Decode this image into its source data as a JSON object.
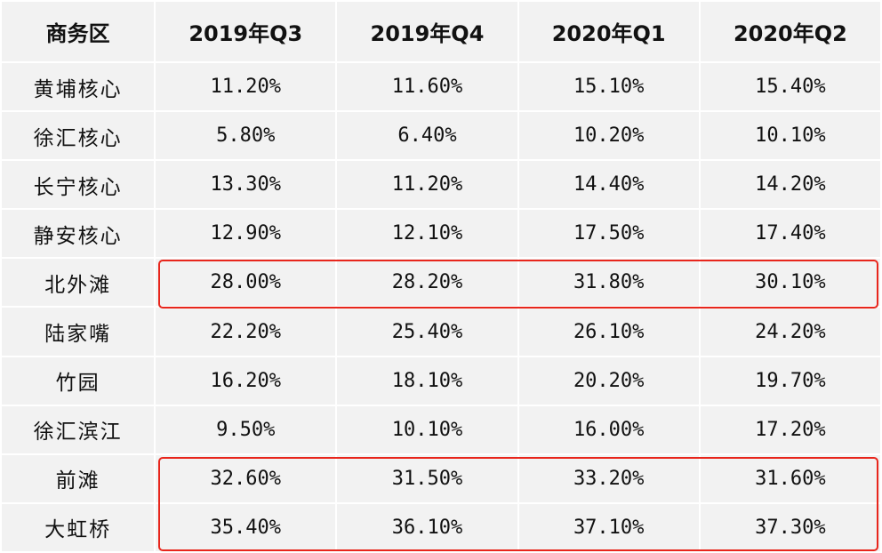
{
  "chart_data": {
    "type": "table",
    "columns": [
      "商务区",
      "2019年Q3",
      "2019年Q4",
      "2020年Q1",
      "2020年Q2"
    ],
    "rows": [
      [
        "黄埔核心",
        "11.20%",
        "11.60%",
        "15.10%",
        "15.40%"
      ],
      [
        "徐汇核心",
        "5.80%",
        "6.40%",
        "10.20%",
        "10.10%"
      ],
      [
        "长宁核心",
        "13.30%",
        "11.20%",
        "14.40%",
        "14.20%"
      ],
      [
        "静安核心",
        "12.90%",
        "12.10%",
        "17.50%",
        "17.40%"
      ],
      [
        "北外滩",
        "28.00%",
        "28.20%",
        "31.80%",
        "30.10%"
      ],
      [
        "陆家嘴",
        "22.20%",
        "25.40%",
        "26.10%",
        "24.20%"
      ],
      [
        "竹园",
        "16.20%",
        "18.10%",
        "20.20%",
        "19.70%"
      ],
      [
        "徐汇滨江",
        "9.50%",
        "10.10%",
        "16.00%",
        "17.20%"
      ],
      [
        "前滩",
        "32.60%",
        "31.50%",
        "33.20%",
        "31.60%"
      ],
      [
        "大虹桥",
        "35.40%",
        "36.10%",
        "37.10%",
        "37.30%"
      ]
    ],
    "highlighted_rows": [
      "北外滩",
      "前滩",
      "大虹桥"
    ],
    "colors": {
      "cell_background": "#f2f2f2",
      "grid_lines": "#ffffff",
      "highlight_border": "#e8261c",
      "text": "#111111"
    }
  }
}
